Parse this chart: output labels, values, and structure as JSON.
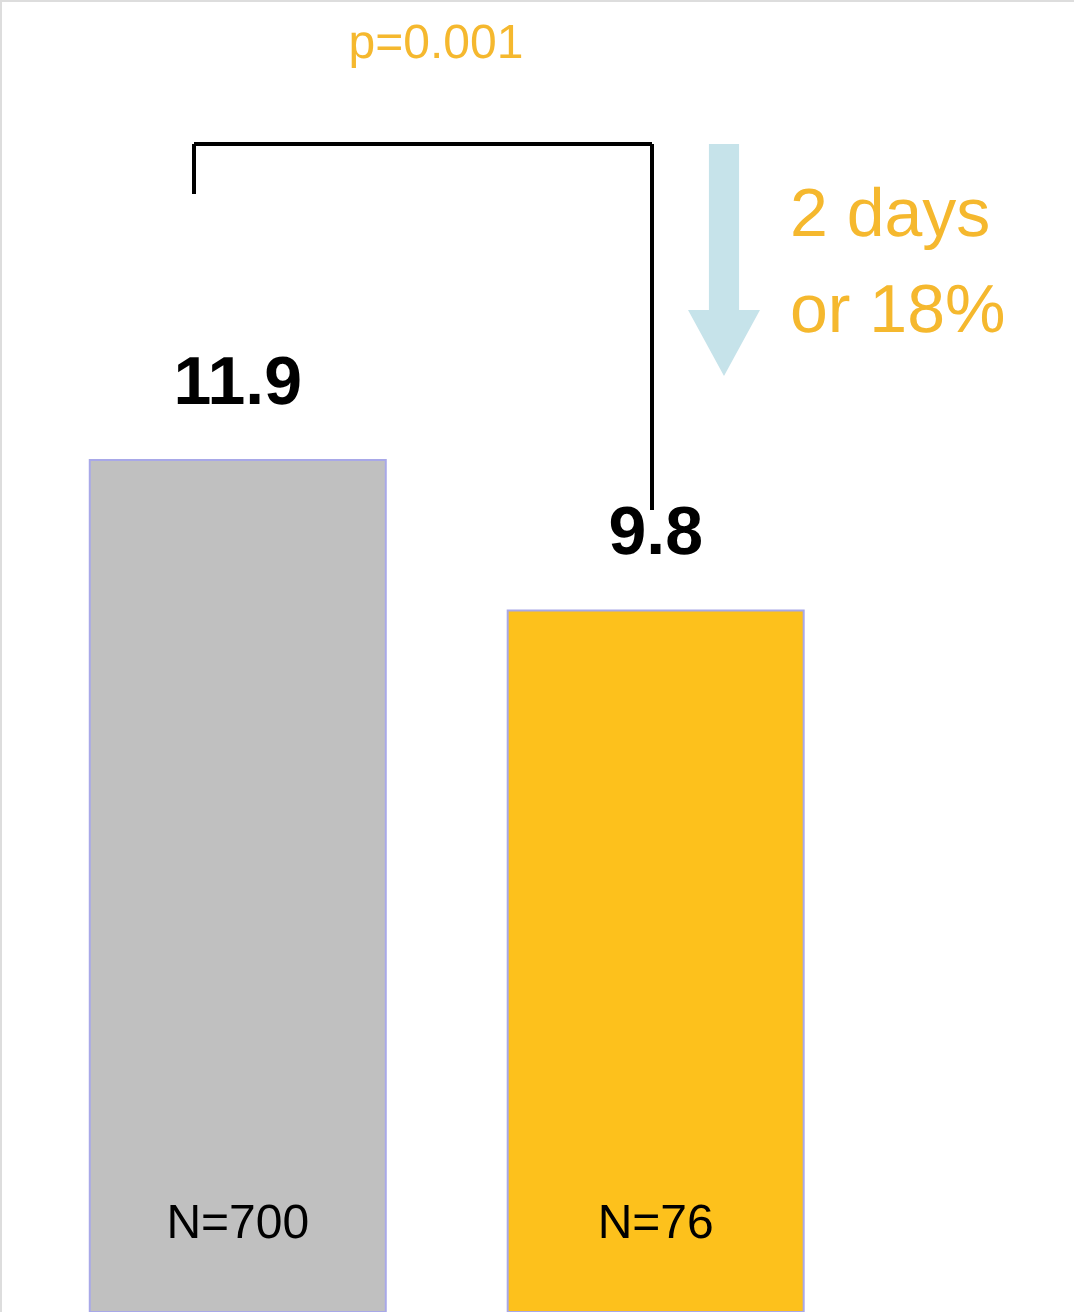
{
  "chart_data": {
    "type": "bar",
    "categories": [
      null,
      null
    ],
    "values": [
      11.9,
      9.8
    ],
    "colors": [
      "#c0c0c0",
      "#fdc11c"
    ],
    "data_labels": true,
    "annotations": [
      "p=0.001",
      "2 days\nor 18%",
      "N=700",
      "N=76"
    ]
  }
}
